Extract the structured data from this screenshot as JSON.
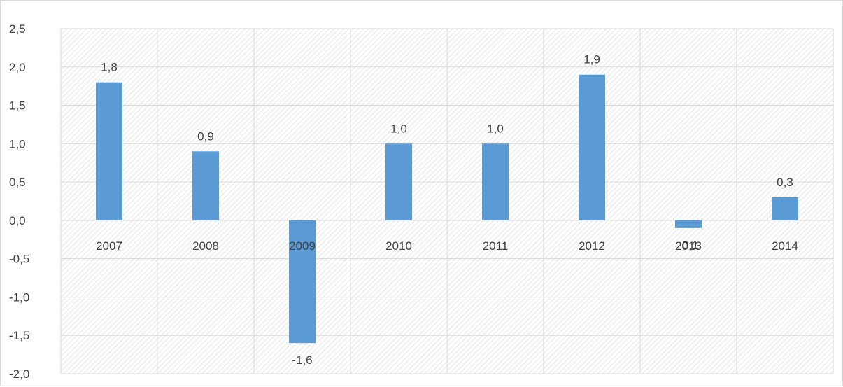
{
  "chart_data": {
    "type": "bar",
    "categories": [
      "2007",
      "2008",
      "2009",
      "2010",
      "2011",
      "2012",
      "2013",
      "2014"
    ],
    "values": [
      1.8,
      0.9,
      -1.6,
      1.0,
      1.0,
      1.9,
      -0.1,
      0.3
    ],
    "data_labels": [
      "1,8",
      "0,9",
      "-1,6",
      "1,0",
      "1,0",
      "1,9",
      "-0,1",
      "0,3"
    ],
    "ylim": [
      -2.0,
      2.5
    ],
    "yticks": [
      2.5,
      2.0,
      1.5,
      1.0,
      0.5,
      0.0,
      -0.5,
      -1.0,
      -1.5,
      -2.0
    ],
    "ytick_labels": [
      "2,5",
      "2,0",
      "1,5",
      "1,0",
      "0,5",
      "0,0",
      "-0,5",
      "-1,0",
      "-1,5",
      "-2,0"
    ],
    "grid": true,
    "legend": "none",
    "bar_color": "#5b9bd5",
    "grid_color": "#d9d9d9",
    "background_pattern": "diagonal-hatch"
  }
}
